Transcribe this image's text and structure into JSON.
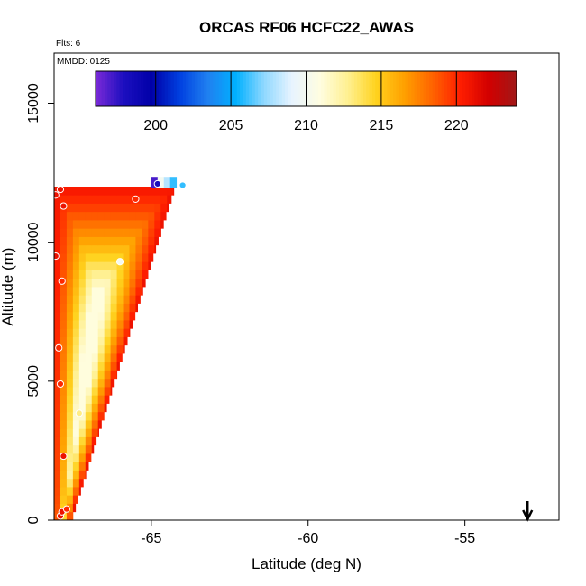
{
  "chart_data": {
    "type": "heatmap",
    "title": "ORCAS RF06 HCFC22_AWAS",
    "xlabel": "Latitude (deg N)",
    "ylabel": "Altitude (m)",
    "annotation_flts": "Flts: 6",
    "annotation_mmdd": "MMDD: 0125",
    "xlim": [
      -68.1,
      -52
    ],
    "ylim": [
      0,
      16800
    ],
    "x_ticks": [
      -65,
      -60,
      -55
    ],
    "x_tick_labels": [
      "-65",
      "-60",
      "-55"
    ],
    "y_ticks": [
      0,
      5000,
      10000,
      15000
    ],
    "y_tick_labels": [
      "0",
      "5000",
      "10000",
      "15000"
    ],
    "colorbar": {
      "range": [
        196,
        224
      ],
      "ticks": [
        200,
        205,
        210,
        215,
        220
      ],
      "tick_labels": [
        "200",
        "205",
        "210",
        "215",
        "220"
      ],
      "colors": [
        "#7b2ad8",
        "#1c0fbf",
        "#0000a8",
        "#0040e0",
        "#2080f0",
        "#00b0ff",
        "#8fd8ff",
        "#e8f4ff",
        "#fffde0",
        "#fff090",
        "#ffd21e",
        "#ffa000",
        "#ff6400",
        "#ff1e00",
        "#d20000",
        "#a01818"
      ]
    },
    "curtain": {
      "x_left": -68.1,
      "alt_max": 12000,
      "alt_step": 300,
      "lat_step": 0.2,
      "right_edge_at_top": -64.2,
      "right_edge_at_bottom": -67.5,
      "value_edge": 221,
      "value_core": 211,
      "top_cells": [
        {
          "lat": -64.9,
          "alt": 12100,
          "value": 197
        },
        {
          "lat": -64.7,
          "alt": 12100,
          "value": 210
        },
        {
          "lat": -64.5,
          "alt": 12100,
          "value": 208
        },
        {
          "lat": -64.3,
          "alt": 12100,
          "value": 206
        }
      ]
    },
    "samples": [
      {
        "lat": -67.9,
        "alt": 150,
        "value": 221
      },
      {
        "lat": -67.85,
        "alt": 300,
        "value": 221
      },
      {
        "lat": -67.7,
        "alt": 400,
        "value": 220
      },
      {
        "lat": -67.8,
        "alt": 2300,
        "value": 221
      },
      {
        "lat": -67.3,
        "alt": 3850,
        "value": 213
      },
      {
        "lat": -67.9,
        "alt": 4900,
        "value": 220
      },
      {
        "lat": -67.95,
        "alt": 6200,
        "value": 220
      },
      {
        "lat": -67.85,
        "alt": 8600,
        "value": 220
      },
      {
        "lat": -68.05,
        "alt": 9500,
        "value": 221
      },
      {
        "lat": -66.0,
        "alt": 9300,
        "value": 210
      },
      {
        "lat": -67.8,
        "alt": 11300,
        "value": 221
      },
      {
        "lat": -68.05,
        "alt": 11700,
        "value": 221
      },
      {
        "lat": -67.9,
        "alt": 11900,
        "value": 221
      },
      {
        "lat": -65.5,
        "alt": 11550,
        "value": 220
      },
      {
        "lat": -64.8,
        "alt": 12100,
        "value": 198
      },
      {
        "lat": -64.0,
        "alt": 12050,
        "value": 206
      }
    ],
    "arrow_lat": -53.0
  }
}
